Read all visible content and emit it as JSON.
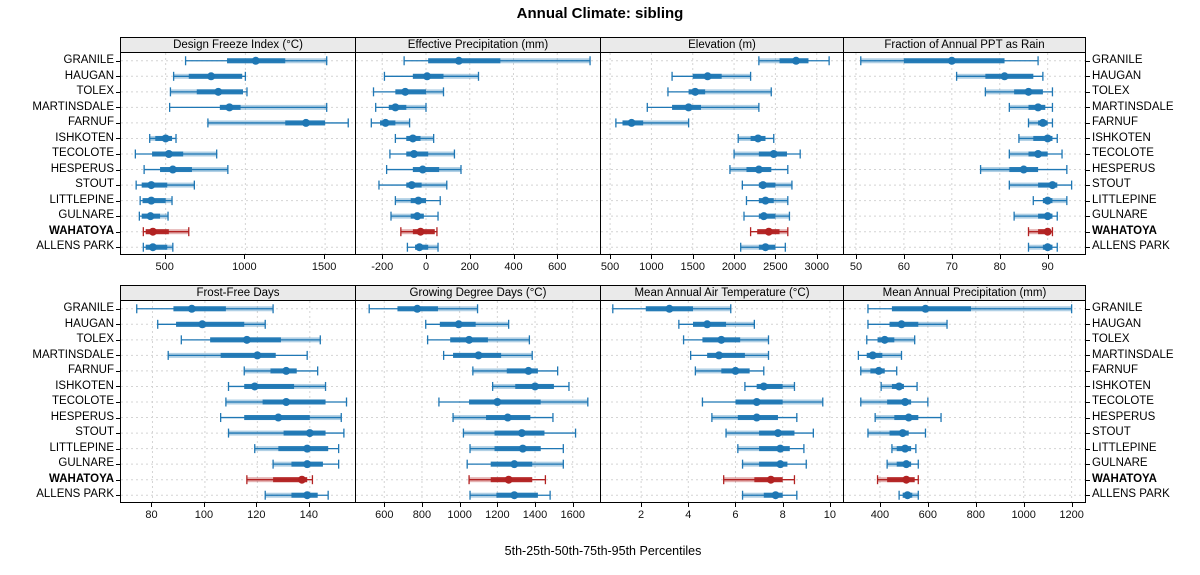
{
  "title": "Annual Climate: sibling",
  "caption": "5th-25th-50th-75th-95th Percentiles",
  "percentile_labels": [
    "5th",
    "25th",
    "50th",
    "75th",
    "95th"
  ],
  "stations": [
    "GRANILE",
    "HAUGAN",
    "TOLEX",
    "MARTINSDALE",
    "FARNUF",
    "ISHKOTEN",
    "TECOLOTE",
    "HESPERUS",
    "STOUT",
    "LITTLEPINE",
    "GULNARE",
    "WAHATOYA",
    "ALLENS PARK"
  ],
  "highlight_station": "WAHATOYA",
  "colors": {
    "series": "#1F77B4",
    "highlight": "#B22222",
    "grid": "#D4D4D4",
    "strip_bg": "#EAEAEA",
    "border": "#000000"
  },
  "chart_data": [
    {
      "type": "range-dotplot",
      "title": "Design Freeze Index (°C)",
      "grid_row": 0,
      "grid_col": 0,
      "ticks": [
        500,
        1000,
        1500
      ],
      "xlim": [
        220,
        1700
      ],
      "values": [
        [
          625,
          885,
          1065,
          1250,
          1510
        ],
        [
          550,
          645,
          785,
          980,
          1000
        ],
        [
          530,
          695,
          830,
          985,
          1010
        ],
        [
          525,
          840,
          900,
          970,
          1510
        ],
        [
          765,
          1250,
          1380,
          1500,
          1645
        ],
        [
          400,
          435,
          500,
          540,
          565
        ],
        [
          310,
          415,
          520,
          610,
          820
        ],
        [
          365,
          465,
          545,
          665,
          890
        ],
        [
          315,
          350,
          410,
          510,
          680
        ],
        [
          340,
          355,
          410,
          500,
          540
        ],
        [
          335,
          350,
          405,
          465,
          515
        ],
        [
          360,
          375,
          420,
          520,
          645
        ],
        [
          360,
          375,
          420,
          510,
          545
        ]
      ]
    },
    {
      "type": "range-dotplot",
      "title": "Effective Precipitation (mm)",
      "grid_row": 0,
      "grid_col": 1,
      "ticks": [
        -200,
        0,
        200,
        400,
        600
      ],
      "xlim": [
        -320,
        800
      ],
      "values": [
        [
          -100,
          10,
          150,
          340,
          750
        ],
        [
          -190,
          -60,
          5,
          80,
          240
        ],
        [
          -240,
          -140,
          -95,
          0,
          80
        ],
        [
          -230,
          -170,
          -140,
          -90,
          0
        ],
        [
          -250,
          -210,
          -185,
          -140,
          -75
        ],
        [
          -140,
          -90,
          -60,
          -25,
          35
        ],
        [
          -165,
          -90,
          -55,
          10,
          130
        ],
        [
          -180,
          -60,
          -15,
          60,
          160
        ],
        [
          -215,
          -90,
          -65,
          -20,
          95
        ],
        [
          -140,
          -70,
          -35,
          0,
          65
        ],
        [
          -160,
          -70,
          -40,
          -10,
          55
        ],
        [
          -115,
          -60,
          -25,
          40,
          50
        ],
        [
          -85,
          -50,
          -30,
          10,
          55
        ]
      ]
    },
    {
      "type": "range-dotplot",
      "title": "Elevation (m)",
      "grid_row": 0,
      "grid_col": 2,
      "ticks": [
        500,
        1000,
        1500,
        2000,
        2500,
        3000
      ],
      "xlim": [
        390,
        3330
      ],
      "values": [
        [
          2300,
          2550,
          2750,
          2900,
          3150
        ],
        [
          1250,
          1500,
          1680,
          1850,
          2200
        ],
        [
          1200,
          1450,
          1530,
          1650,
          2450
        ],
        [
          950,
          1250,
          1450,
          1600,
          2300
        ],
        [
          570,
          650,
          760,
          900,
          1450
        ],
        [
          2050,
          2200,
          2290,
          2380,
          2480
        ],
        [
          2000,
          2300,
          2480,
          2640,
          2800
        ],
        [
          1950,
          2150,
          2300,
          2450,
          2650
        ],
        [
          2100,
          2300,
          2350,
          2500,
          2700
        ],
        [
          2150,
          2300,
          2380,
          2480,
          2650
        ],
        [
          2120,
          2300,
          2360,
          2500,
          2670
        ],
        [
          2200,
          2280,
          2420,
          2550,
          2650
        ],
        [
          2080,
          2300,
          2380,
          2500,
          2620
        ]
      ]
    },
    {
      "type": "range-dotplot",
      "title": "Fraction of Annual PPT as Rain",
      "grid_row": 0,
      "grid_col": 3,
      "ticks": [
        50,
        60,
        70,
        80,
        90
      ],
      "xlim": [
        47.5,
        98
      ],
      "values": [
        [
          51,
          60,
          70,
          81,
          88
        ],
        [
          71,
          77,
          81,
          87,
          89
        ],
        [
          77,
          83,
          86,
          89,
          91
        ],
        [
          82,
          86,
          88,
          89.5,
          91
        ],
        [
          86,
          88,
          89,
          90,
          91
        ],
        [
          84,
          87,
          90,
          91,
          92
        ],
        [
          82,
          86,
          88,
          90,
          93
        ],
        [
          76,
          82,
          85,
          88,
          94
        ],
        [
          82,
          88,
          91,
          92,
          95
        ],
        [
          87,
          89,
          90,
          91,
          94
        ],
        [
          83,
          88,
          90,
          91,
          92
        ],
        [
          86,
          88,
          90,
          90.5,
          91
        ],
        [
          86,
          89,
          90,
          91,
          92
        ]
      ]
    },
    {
      "type": "range-dotplot",
      "title": "Frost-Free Days",
      "grid_row": 1,
      "grid_col": 0,
      "ticks": [
        80,
        100,
        120,
        140
      ],
      "xlim": [
        68,
        158
      ],
      "values": [
        [
          74,
          88,
          95,
          108,
          126
        ],
        [
          82,
          89,
          99,
          115,
          123
        ],
        [
          91,
          102,
          116,
          129,
          144
        ],
        [
          86,
          106,
          120,
          127,
          139
        ],
        [
          115,
          125,
          131,
          135,
          143
        ],
        [
          109,
          115,
          119,
          134,
          146
        ],
        [
          108,
          122,
          131,
          146,
          154
        ],
        [
          106,
          115,
          128,
          140,
          152
        ],
        [
          109,
          130,
          140,
          146,
          153
        ],
        [
          119,
          128,
          139,
          147,
          151
        ],
        [
          126,
          133,
          139,
          145,
          151
        ],
        [
          116,
          126,
          137,
          139,
          141
        ],
        [
          123,
          133,
          139,
          143,
          147
        ]
      ]
    },
    {
      "type": "range-dotplot",
      "title": "Growing Degree Days (°C)",
      "grid_row": 1,
      "grid_col": 1,
      "ticks": [
        600,
        800,
        1000,
        1200,
        1400,
        1600
      ],
      "xlim": [
        450,
        1750
      ],
      "values": [
        [
          520,
          670,
          775,
          885,
          1095
        ],
        [
          820,
          895,
          995,
          1085,
          1260
        ],
        [
          830,
          950,
          1050,
          1150,
          1370
        ],
        [
          915,
          965,
          1100,
          1220,
          1385
        ],
        [
          1070,
          1250,
          1365,
          1415,
          1520
        ],
        [
          1175,
          1295,
          1400,
          1500,
          1580
        ],
        [
          890,
          1050,
          1200,
          1430,
          1680
        ],
        [
          965,
          1140,
          1255,
          1375,
          1495
        ],
        [
          1020,
          1185,
          1330,
          1450,
          1615
        ],
        [
          1055,
          1185,
          1335,
          1430,
          1550
        ],
        [
          1040,
          1165,
          1290,
          1385,
          1550
        ],
        [
          1050,
          1165,
          1260,
          1385,
          1455
        ],
        [
          1055,
          1195,
          1290,
          1415,
          1480
        ]
      ]
    },
    {
      "type": "range-dotplot",
      "title": "Mean Annual Air Temperature (°C)",
      "grid_row": 1,
      "grid_col": 2,
      "ticks": [
        2,
        4,
        6,
        8,
        10
      ],
      "xlim": [
        0.3,
        10.6
      ],
      "values": [
        [
          0.8,
          2.2,
          3.2,
          4.2,
          5.8
        ],
        [
          3.6,
          4.2,
          4.8,
          5.6,
          6.8
        ],
        [
          3.8,
          4.6,
          5.4,
          6.2,
          7.4
        ],
        [
          4.1,
          4.8,
          5.3,
          6.4,
          7.4
        ],
        [
          4.3,
          5.4,
          6.0,
          6.6,
          7.2
        ],
        [
          6.4,
          6.9,
          7.2,
          8.0,
          8.5
        ],
        [
          4.6,
          6.0,
          6.9,
          8.0,
          9.7
        ],
        [
          5.0,
          6.1,
          6.9,
          7.8,
          8.6
        ],
        [
          5.6,
          7.0,
          7.8,
          8.5,
          9.3
        ],
        [
          6.1,
          7.0,
          7.9,
          8.3,
          8.9
        ],
        [
          6.3,
          7.0,
          7.9,
          8.2,
          9.0
        ],
        [
          5.5,
          6.8,
          7.5,
          8.0,
          8.5
        ],
        [
          6.3,
          7.2,
          7.7,
          8.0,
          8.6
        ]
      ]
    },
    {
      "type": "range-dotplot",
      "title": "Mean Annual Precipitation (mm)",
      "grid_row": 1,
      "grid_col": 3,
      "ticks": [
        400,
        600,
        800,
        1000,
        1200
      ],
      "xlim": [
        250,
        1260
      ],
      "values": [
        [
          350,
          450,
          590,
          780,
          1200
        ],
        [
          350,
          440,
          490,
          560,
          680
        ],
        [
          345,
          390,
          420,
          460,
          545
        ],
        [
          310,
          345,
          370,
          410,
          490
        ],
        [
          320,
          360,
          395,
          420,
          470
        ],
        [
          405,
          450,
          480,
          500,
          555
        ],
        [
          320,
          430,
          505,
          530,
          600
        ],
        [
          380,
          460,
          520,
          560,
          655
        ],
        [
          350,
          440,
          495,
          520,
          590
        ],
        [
          450,
          470,
          505,
          530,
          550
        ],
        [
          430,
          470,
          510,
          530,
          560
        ],
        [
          390,
          430,
          510,
          545,
          560
        ],
        [
          480,
          495,
          515,
          535,
          560
        ]
      ]
    }
  ]
}
